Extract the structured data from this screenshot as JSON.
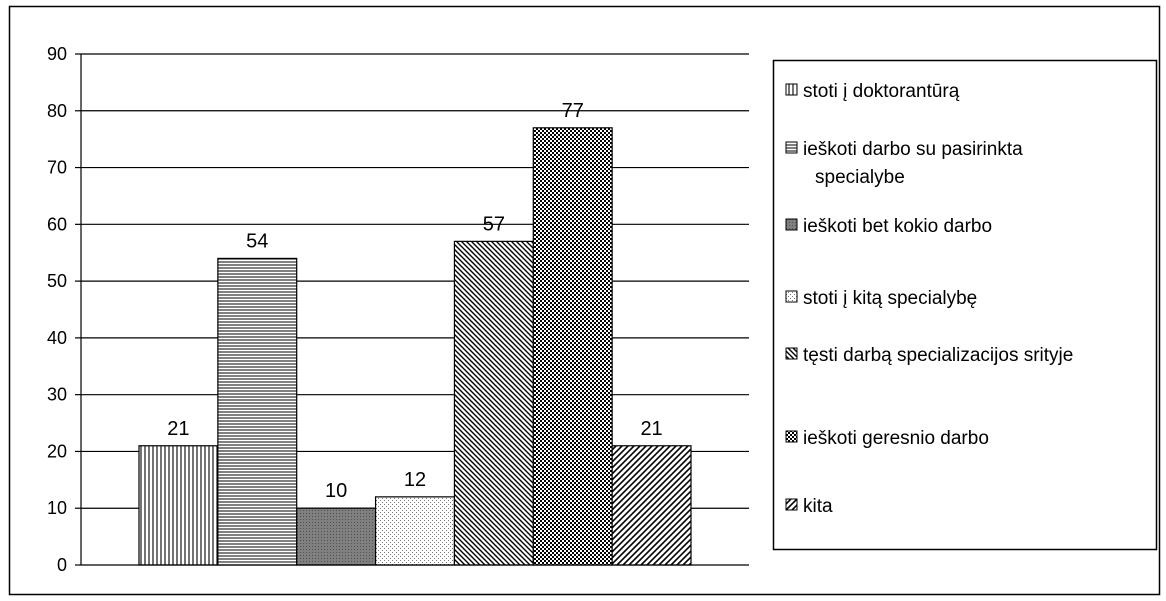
{
  "chart_data": {
    "type": "bar",
    "title": "",
    "xlabel": "",
    "ylabel": "",
    "ylim": [
      0,
      90
    ],
    "yticks": [
      "0",
      "10",
      "20",
      "30",
      "40",
      "50",
      "60",
      "70",
      "80",
      "90"
    ],
    "grid": true,
    "legend_position": "right",
    "series": [
      {
        "name": "stoti į doktorantūrą",
        "value": 21,
        "label": "21",
        "pattern": "vertical"
      },
      {
        "name": "ieškoti darbo su pasirinkta specialybe",
        "value": 54,
        "label": "54",
        "pattern": "horizontal"
      },
      {
        "name": "ieškoti bet kokio darbo",
        "value": 10,
        "label": "10",
        "pattern": "dark"
      },
      {
        "name": "stoti į kitą specialybę",
        "value": 12,
        "label": "12",
        "pattern": "dots"
      },
      {
        "name": "tęsti darbą specializacijos srityje",
        "value": 57,
        "label": "57",
        "pattern": "diagonal"
      },
      {
        "name": "ieškoti geresnio darbo",
        "value": 77,
        "label": "77",
        "pattern": "checker"
      },
      {
        "name": "kita",
        "value": 21,
        "label": "21",
        "pattern": "diagonal-bold"
      }
    ]
  }
}
